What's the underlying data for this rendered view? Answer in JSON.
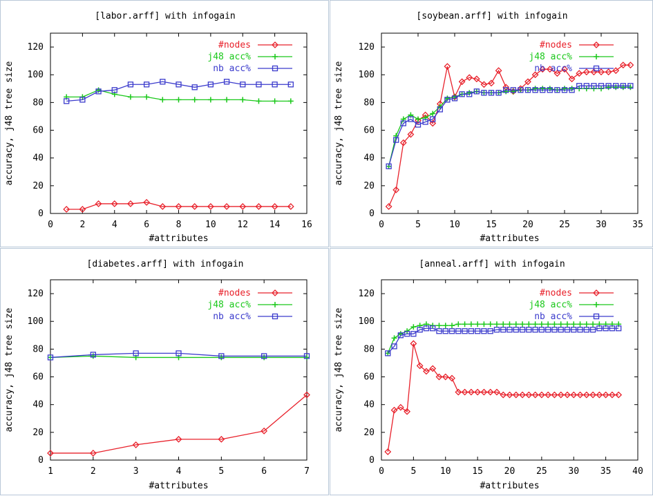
{
  "chart_data": [
    {
      "type": "line",
      "title": "[labor.arff] with infogain",
      "xlabel": "#attributes",
      "ylabel": "accuracy, j48 tree size",
      "xlim": [
        0,
        16
      ],
      "ylim": [
        0,
        130
      ],
      "xticks": [
        0,
        2,
        4,
        6,
        8,
        10,
        12,
        14,
        16
      ],
      "yticks": [
        0,
        20,
        40,
        60,
        80,
        100,
        120
      ],
      "x": [
        1,
        2,
        3,
        4,
        5,
        6,
        7,
        8,
        9,
        10,
        11,
        12,
        13,
        14,
        15
      ],
      "series": [
        {
          "name": "#nodes",
          "color": "#e8202a",
          "marker": "diamond",
          "values": [
            3,
            3,
            7,
            7,
            7,
            8,
            5,
            5,
            5,
            5,
            5,
            5,
            5,
            5,
            5
          ]
        },
        {
          "name": "j48 acc%",
          "color": "#19c819",
          "marker": "plus",
          "values": [
            84,
            84,
            89,
            86,
            84,
            84,
            82,
            82,
            82,
            82,
            82,
            82,
            81,
            81,
            81
          ]
        },
        {
          "name": "nb acc%",
          "color": "#3a3acc",
          "marker": "square",
          "values": [
            81,
            82,
            88,
            89,
            93,
            93,
            95,
            93,
            91,
            93,
            95,
            93,
            93,
            93,
            93
          ]
        }
      ]
    },
    {
      "type": "line",
      "title": "[soybean.arff] with infogain",
      "xlabel": "#attributes",
      "ylabel": "accuracy, j48 tree size",
      "xlim": [
        0,
        35
      ],
      "ylim": [
        0,
        130
      ],
      "xticks": [
        0,
        5,
        10,
        15,
        20,
        25,
        30,
        35
      ],
      "yticks": [
        0,
        20,
        40,
        60,
        80,
        100,
        120
      ],
      "x": [
        1,
        2,
        3,
        4,
        5,
        6,
        7,
        8,
        9,
        10,
        11,
        12,
        13,
        14,
        15,
        16,
        17,
        18,
        19,
        20,
        21,
        22,
        23,
        24,
        25,
        26,
        27,
        28,
        29,
        30,
        31,
        32,
        33,
        34
      ],
      "series": [
        {
          "name": "#nodes",
          "color": "#e8202a",
          "marker": "diamond",
          "values": [
            5,
            17,
            51,
            57,
            67,
            71,
            65,
            79,
            106,
            84,
            95,
            98,
            97,
            93,
            94,
            103,
            91,
            88,
            90,
            95,
            100,
            104,
            104,
            101,
            104,
            97,
            101,
            102,
            102,
            102,
            102,
            103,
            107,
            107
          ]
        },
        {
          "name": "j48 acc%",
          "color": "#19c819",
          "marker": "plus",
          "values": [
            34,
            56,
            68,
            71,
            68,
            69,
            72,
            77,
            83,
            84,
            86,
            87,
            88,
            87,
            87,
            87,
            88,
            88,
            89,
            89,
            90,
            90,
            90,
            89,
            90,
            90,
            90,
            90,
            90,
            90,
            91,
            91,
            91,
            91
          ]
        },
        {
          "name": "nb acc%",
          "color": "#3a3acc",
          "marker": "square",
          "values": [
            34,
            53,
            65,
            68,
            64,
            66,
            68,
            75,
            82,
            83,
            86,
            86,
            88,
            87,
            87,
            87,
            89,
            89,
            89,
            89,
            89,
            89,
            89,
            89,
            89,
            89,
            92,
            92,
            92,
            92,
            92,
            92,
            92,
            92
          ]
        }
      ]
    },
    {
      "type": "line",
      "title": "[diabetes.arff] with infogain",
      "xlabel": "#attributes",
      "ylabel": "accuracy, j48 tree size",
      "xlim": [
        1,
        7
      ],
      "ylim": [
        0,
        130
      ],
      "xticks": [
        1,
        2,
        3,
        4,
        5,
        6,
        7
      ],
      "yticks": [
        0,
        20,
        40,
        60,
        80,
        100,
        120
      ],
      "x": [
        1,
        2,
        3,
        4,
        5,
        6,
        7
      ],
      "series": [
        {
          "name": "#nodes",
          "color": "#e8202a",
          "marker": "diamond",
          "values": [
            5,
            5,
            11,
            15,
            15,
            21,
            47
          ]
        },
        {
          "name": "j48 acc%",
          "color": "#19c819",
          "marker": "plus",
          "values": [
            74,
            75,
            74,
            74,
            74,
            74,
            74
          ]
        },
        {
          "name": "nb acc%",
          "color": "#3a3acc",
          "marker": "square",
          "values": [
            74,
            76,
            77,
            77,
            75,
            75,
            75
          ]
        }
      ]
    },
    {
      "type": "line",
      "title": "[anneal.arff] with infogain",
      "xlabel": "#attributes",
      "ylabel": "accuracy, j48 tree size",
      "xlim": [
        0,
        40
      ],
      "ylim": [
        0,
        130
      ],
      "xticks": [
        0,
        5,
        10,
        15,
        20,
        25,
        30,
        35,
        40
      ],
      "yticks": [
        0,
        20,
        40,
        60,
        80,
        100,
        120
      ],
      "x": [
        1,
        2,
        3,
        4,
        5,
        6,
        7,
        8,
        9,
        10,
        11,
        12,
        13,
        14,
        15,
        16,
        17,
        18,
        19,
        20,
        21,
        22,
        23,
        24,
        25,
        26,
        27,
        28,
        29,
        30,
        31,
        32,
        33,
        34,
        35,
        36,
        37
      ],
      "series": [
        {
          "name": "#nodes",
          "color": "#e8202a",
          "marker": "diamond",
          "values": [
            6,
            36,
            38,
            35,
            84,
            68,
            64,
            66,
            60,
            60,
            59,
            49,
            49,
            49,
            49,
            49,
            49,
            49,
            47,
            47,
            47,
            47,
            47,
            47,
            47,
            47,
            47,
            47,
            47,
            47,
            47,
            47,
            47,
            47,
            47,
            47,
            47
          ]
        },
        {
          "name": "j48 acc%",
          "color": "#19c819",
          "marker": "plus",
          "values": [
            77,
            88,
            91,
            93,
            96,
            97,
            98,
            97,
            97,
            97,
            97,
            98,
            98,
            98,
            98,
            98,
            98,
            98,
            98,
            98,
            98,
            98,
            98,
            98,
            98,
            98,
            98,
            98,
            98,
            98,
            98,
            98,
            98,
            98,
            98,
            98,
            98
          ]
        },
        {
          "name": "nb acc%",
          "color": "#3a3acc",
          "marker": "square",
          "values": [
            77,
            82,
            90,
            91,
            91,
            94,
            95,
            95,
            93,
            93,
            93,
            93,
            93,
            93,
            93,
            93,
            93,
            94,
            94,
            94,
            94,
            94,
            94,
            94,
            94,
            94,
            94,
            94,
            94,
            94,
            94,
            94,
            94,
            95,
            95,
            95,
            95
          ]
        }
      ]
    }
  ]
}
